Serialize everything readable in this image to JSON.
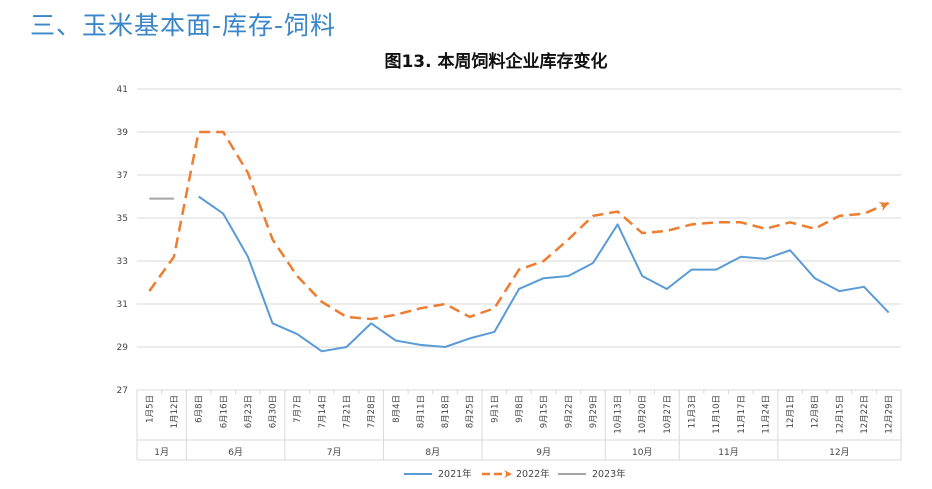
{
  "section_title": "三、玉米基本面-库存-饲料",
  "colors": {
    "s2021": "#5b9bd5",
    "s2022": "#ed7d31",
    "s2023": "#a5a5a5",
    "grid": "#d9d9d9",
    "title": "#3a86c8"
  },
  "chart_data": {
    "type": "line",
    "title": "图13. 本周饲料企业库存变化",
    "ylim": [
      27,
      41
    ],
    "yticks": [
      27,
      29,
      31,
      33,
      35,
      37,
      39,
      41
    ],
    "categories": [
      "1月5日",
      "1月12日",
      "6月8日",
      "6月16日",
      "6月23日",
      "6月30日",
      "7月7日",
      "7月14日",
      "7月21日",
      "7月28日",
      "8月4日",
      "8月11日",
      "8月18日",
      "8月25日",
      "9月1日",
      "9月8日",
      "9月15日",
      "9月22日",
      "9月29日",
      "10月13日",
      "10月20日",
      "10月27日",
      "11月3日",
      "11月10日",
      "11月17日",
      "11月24日",
      "12月1日",
      "12月8日",
      "12月15日",
      "12月22日",
      "12月29日"
    ],
    "month_groups": [
      {
        "label": "1月",
        "start": 0,
        "end": 1
      },
      {
        "label": "6月",
        "start": 2,
        "end": 5
      },
      {
        "label": "7月",
        "start": 6,
        "end": 9
      },
      {
        "label": "8月",
        "start": 10,
        "end": 13
      },
      {
        "label": "9月",
        "start": 14,
        "end": 18
      },
      {
        "label": "10月",
        "start": 19,
        "end": 21
      },
      {
        "label": "11月",
        "start": 22,
        "end": 25
      },
      {
        "label": "12月",
        "start": 26,
        "end": 30
      }
    ],
    "series": [
      {
        "name": "2021年",
        "style": "solid",
        "values": [
          null,
          null,
          36.0,
          35.2,
          33.2,
          30.1,
          29.6,
          28.8,
          29.0,
          30.1,
          29.3,
          29.1,
          29.0,
          29.4,
          29.7,
          31.7,
          32.2,
          32.3,
          32.9,
          34.7,
          32.3,
          31.7,
          32.6,
          32.6,
          33.2,
          33.1,
          33.5,
          32.2,
          31.6,
          31.8,
          30.6
        ]
      },
      {
        "name": "2022年",
        "style": "dashed",
        "values": [
          31.6,
          33.2,
          39.0,
          39.0,
          37.1,
          34.0,
          32.3,
          31.1,
          30.4,
          30.3,
          30.5,
          30.8,
          31.0,
          30.4,
          30.8,
          32.6,
          33.0,
          34.0,
          35.1,
          35.3,
          34.3,
          34.4,
          34.7,
          34.8,
          34.8,
          34.5,
          34.8,
          34.5,
          35.1,
          35.2,
          35.7
        ]
      },
      {
        "name": "2023年",
        "style": "solid",
        "values": [
          35.9,
          35.9,
          null,
          null,
          null,
          null,
          null,
          null,
          null,
          null,
          null,
          null,
          null,
          null,
          null,
          null,
          null,
          null,
          null,
          null,
          null,
          null,
          null,
          null,
          null,
          null,
          null,
          null,
          null,
          null,
          null
        ]
      }
    ]
  }
}
